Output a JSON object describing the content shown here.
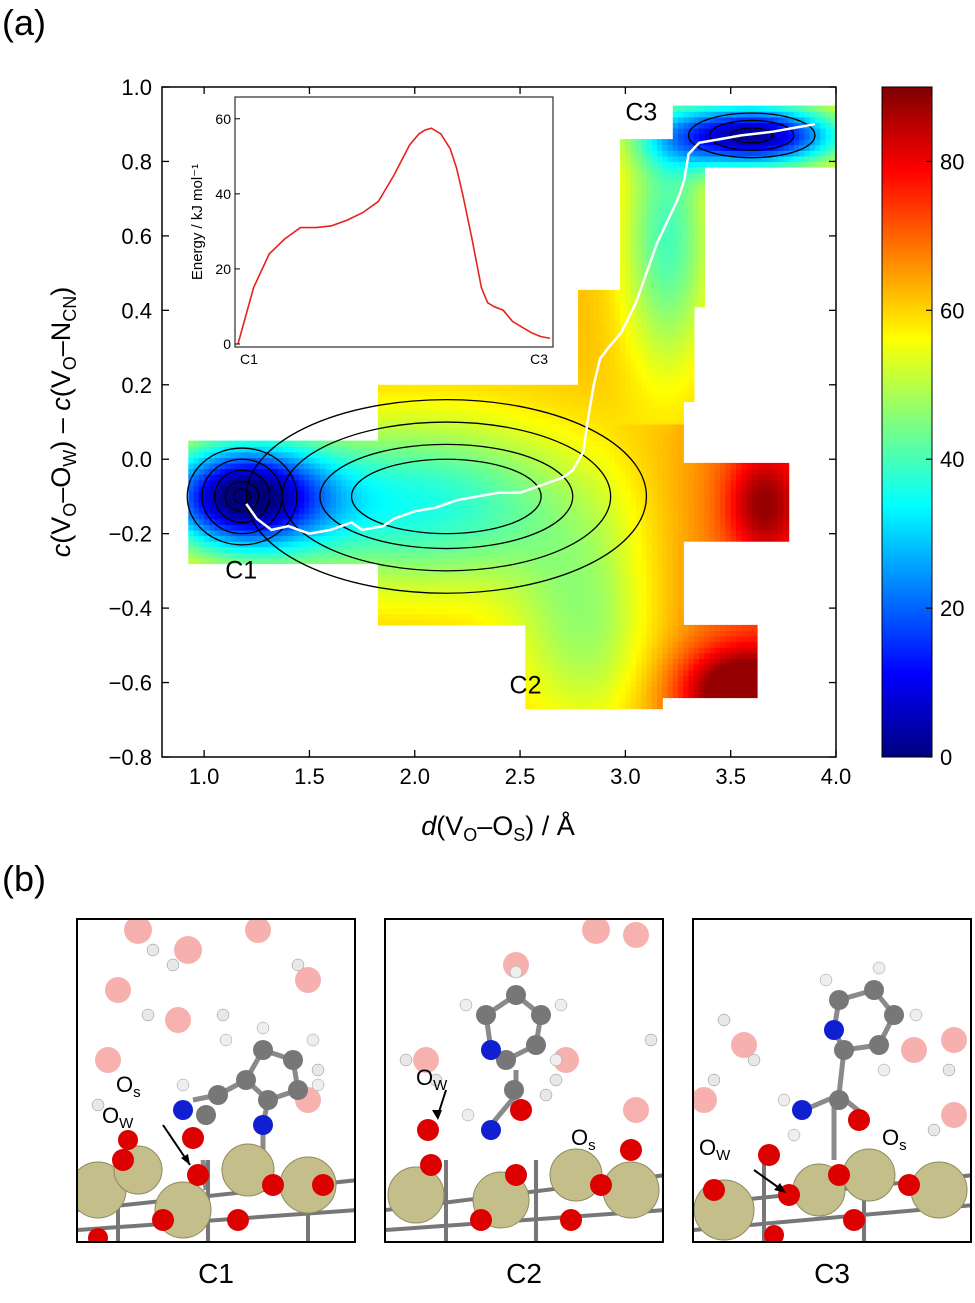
{
  "panel_a_label": "(a)",
  "panel_b_label": "(b)",
  "colors": {
    "path": "#ffffff",
    "inset_line": "#e8231c",
    "colormap": [
      "#00007f",
      "#0000ff",
      "#007fff",
      "#00ffff",
      "#7fff7f",
      "#ffff00",
      "#ff7f00",
      "#ff0000",
      "#7f0000"
    ]
  },
  "chart_data": [
    {
      "type": "heatmap",
      "title": "",
      "xlabel": {
        "pre": "d",
        "main": "(V",
        "sub1": "O",
        "mid": "–O",
        "sub2": "S",
        "post": ") / Å"
      },
      "ylabel": {
        "c1": "c",
        "t1": "(V",
        "s1": "O",
        "t2": "–O",
        "s2": "W",
        "t3": ") – ",
        "c2": "c",
        "t4": "(V",
        "s3": "O",
        "t5": "–N",
        "s4": "CN",
        "t6": ")"
      },
      "xlim": [
        0.8,
        4.0
      ],
      "ylim": [
        -0.8,
        1.0
      ],
      "xticks": [
        "1.0",
        "1.5",
        "2.0",
        "2.5",
        "3.0",
        "3.5",
        "4.0"
      ],
      "xtick_values": [
        1.0,
        1.5,
        2.0,
        2.5,
        3.0,
        3.5,
        4.0
      ],
      "yticks": [
        "1.0",
        "0.8",
        "0.6",
        "0.4",
        "0.2",
        "0.0",
        "−0.2",
        "−0.4",
        "−0.6",
        "−0.8"
      ],
      "ytick_values": [
        1.0,
        0.8,
        0.6,
        0.4,
        0.2,
        0.0,
        -0.2,
        -0.4,
        -0.6,
        -0.8
      ],
      "colorbar": {
        "range": [
          0,
          90
        ],
        "ticks": [
          "0",
          "20",
          "40",
          "60",
          "80"
        ],
        "tick_values": [
          0,
          20,
          40,
          60,
          80
        ]
      },
      "minima": [
        {
          "label": "C1",
          "x": 1.2,
          "y": -0.1,
          "energy": 0
        },
        {
          "label": "C2",
          "x": 2.85,
          "y": -0.5,
          "energy": 42
        },
        {
          "label": "C3",
          "x": 3.6,
          "y": 0.85,
          "energy": 2
        }
      ],
      "annotations": [
        {
          "text": "C1",
          "x": 1.1,
          "y": -0.32
        },
        {
          "text": "C2",
          "x": 2.45,
          "y": -0.63
        },
        {
          "text": "C3",
          "x": 3.0,
          "y": 0.91
        }
      ],
      "min_energy_path": {
        "x": [
          1.2,
          1.25,
          1.32,
          1.4,
          1.5,
          1.6,
          1.7,
          1.75,
          1.85,
          1.9,
          2.0,
          2.1,
          2.2,
          2.3,
          2.4,
          2.5,
          2.6,
          2.7,
          2.75,
          2.8,
          2.82,
          2.85,
          2.88,
          2.92,
          2.98,
          3.05,
          3.1,
          3.15,
          3.2,
          3.25,
          3.28,
          3.3,
          3.35,
          3.45,
          3.55,
          3.7,
          3.8,
          3.9
        ],
        "y": [
          -0.12,
          -0.16,
          -0.19,
          -0.18,
          -0.2,
          -0.19,
          -0.17,
          -0.19,
          -0.18,
          -0.16,
          -0.14,
          -0.13,
          -0.11,
          -0.1,
          -0.09,
          -0.09,
          -0.07,
          -0.05,
          -0.03,
          0.02,
          0.1,
          0.2,
          0.27,
          0.3,
          0.34,
          0.42,
          0.5,
          0.58,
          0.64,
          0.7,
          0.75,
          0.82,
          0.85,
          0.86,
          0.87,
          0.88,
          0.89,
          0.9
        ]
      }
    },
    {
      "type": "line",
      "title": "",
      "ylabel": "Energy / kJ mol⁻¹",
      "ylim": [
        0,
        65
      ],
      "yticks": [
        "0",
        "20",
        "40",
        "60"
      ],
      "ytick_values": [
        0,
        20,
        40,
        60
      ],
      "xtick_labels": [
        "C1",
        "C3"
      ],
      "x": [
        0,
        0.02,
        0.05,
        0.1,
        0.15,
        0.2,
        0.25,
        0.3,
        0.35,
        0.4,
        0.45,
        0.5,
        0.55,
        0.58,
        0.6,
        0.62,
        0.65,
        0.68,
        0.7,
        0.72,
        0.75,
        0.78,
        0.8,
        0.82,
        0.85,
        0.88,
        0.9,
        0.94,
        0.97,
        1.0
      ],
      "y": [
        0,
        6,
        15,
        24,
        28,
        31,
        31,
        31.5,
        33,
        35,
        38,
        45,
        53,
        56,
        57,
        57.5,
        56,
        52,
        47,
        40,
        28,
        15,
        11,
        10,
        9,
        6,
        5,
        3,
        2,
        1.5
      ]
    }
  ],
  "structures": [
    {
      "caption": "C1",
      "labels": [
        "O",
        "s",
        "O",
        "W"
      ]
    },
    {
      "caption": "C2",
      "labels": [
        "O",
        "W",
        "O",
        "s"
      ]
    },
    {
      "caption": "C3",
      "labels": [
        "O",
        "W",
        "O",
        "s"
      ]
    }
  ]
}
